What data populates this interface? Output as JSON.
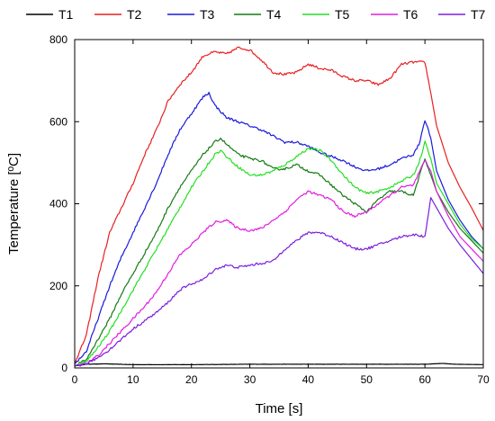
{
  "chart_data": {
    "type": "line",
    "xlabel": "Time [s]",
    "ylabel": "Temperature [ºC]",
    "xlim": [
      0,
      70
    ],
    "ylim": [
      0,
      800
    ],
    "xticks": [
      0,
      10,
      20,
      30,
      40,
      50,
      60,
      70
    ],
    "yticks": [
      0,
      200,
      400,
      600,
      800
    ],
    "xtick_labels": [
      "0",
      "10",
      "20",
      "30",
      "40",
      "50",
      "60",
      "70"
    ],
    "ytick_labels": [
      "0",
      "200",
      "400",
      "600",
      "800"
    ],
    "grid": false,
    "legend_position": "top",
    "series": [
      {
        "name": "T1",
        "color": "#000000",
        "x": [
          0,
          2,
          5,
          10,
          20,
          30,
          40,
          50,
          60,
          63,
          65,
          70
        ],
        "y": [
          5,
          9,
          10,
          8,
          8,
          9,
          9,
          9,
          9,
          11,
          9,
          8
        ]
      },
      {
        "name": "T2",
        "color": "#e8201f",
        "x": [
          0,
          2,
          4,
          6,
          8,
          10,
          12,
          14,
          16,
          18,
          20,
          22,
          24,
          26,
          28,
          30,
          32,
          34,
          36,
          38,
          40,
          42,
          44,
          46,
          48,
          50,
          52,
          54,
          56,
          58,
          60,
          61,
          62,
          64,
          66,
          68,
          70
        ],
        "y": [
          10,
          80,
          220,
          330,
          390,
          450,
          520,
          580,
          650,
          690,
          720,
          760,
          770,
          765,
          780,
          775,
          750,
          720,
          715,
          720,
          740,
          730,
          725,
          710,
          700,
          700,
          690,
          705,
          740,
          745,
          745,
          670,
          590,
          500,
          440,
          390,
          335
        ]
      },
      {
        "name": "T3",
        "color": "#1a1adc",
        "x": [
          0,
          2,
          4,
          6,
          8,
          10,
          12,
          14,
          16,
          18,
          20,
          22,
          23,
          24,
          26,
          28,
          30,
          32,
          34,
          36,
          38,
          40,
          42,
          44,
          46,
          48,
          50,
          52,
          54,
          56,
          58,
          59,
          60,
          61,
          62,
          64,
          66,
          68,
          70
        ],
        "y": [
          10,
          40,
          120,
          200,
          270,
          330,
          390,
          450,
          520,
          580,
          620,
          660,
          670,
          640,
          610,
          600,
          590,
          580,
          565,
          550,
          550,
          540,
          525,
          515,
          505,
          490,
          480,
          485,
          495,
          510,
          520,
          545,
          605,
          560,
          480,
          410,
          360,
          320,
          290
        ]
      },
      {
        "name": "T4",
        "color": "#147a14",
        "x": [
          0,
          2,
          4,
          6,
          8,
          10,
          12,
          14,
          16,
          18,
          20,
          22,
          24,
          25,
          26,
          28,
          30,
          32,
          34,
          36,
          38,
          40,
          42,
          44,
          46,
          48,
          50,
          52,
          54,
          56,
          58,
          60,
          61,
          62,
          64,
          66,
          68,
          70
        ],
        "y": [
          5,
          20,
          70,
          120,
          180,
          230,
          280,
          330,
          390,
          440,
          480,
          520,
          550,
          560,
          545,
          520,
          510,
          505,
          485,
          485,
          495,
          480,
          470,
          445,
          420,
          400,
          380,
          410,
          430,
          430,
          420,
          510,
          470,
          430,
          380,
          340,
          310,
          280
        ]
      },
      {
        "name": "T5",
        "color": "#22e022",
        "x": [
          0,
          2,
          4,
          6,
          8,
          10,
          12,
          14,
          16,
          18,
          20,
          22,
          24,
          25,
          26,
          28,
          30,
          32,
          34,
          36,
          38,
          40,
          42,
          44,
          46,
          48,
          50,
          52,
          54,
          56,
          58,
          59,
          60,
          61,
          62,
          64,
          66,
          68,
          70
        ],
        "y": [
          5,
          15,
          50,
          90,
          140,
          190,
          240,
          290,
          340,
          390,
          440,
          480,
          520,
          530,
          515,
          490,
          470,
          470,
          480,
          495,
          515,
          535,
          530,
          505,
          470,
          440,
          425,
          430,
          440,
          455,
          470,
          500,
          550,
          510,
          450,
          400,
          350,
          315,
          290
        ]
      },
      {
        "name": "T6",
        "color": "#e01ee0",
        "x": [
          0,
          2,
          4,
          6,
          8,
          10,
          12,
          14,
          16,
          18,
          20,
          22,
          24,
          26,
          28,
          30,
          32,
          34,
          36,
          38,
          40,
          42,
          44,
          46,
          48,
          50,
          52,
          54,
          56,
          58,
          60,
          61,
          62,
          64,
          66,
          68,
          70
        ],
        "y": [
          5,
          10,
          30,
          60,
          90,
          120,
          150,
          185,
          230,
          275,
          300,
          330,
          355,
          360,
          340,
          335,
          340,
          360,
          380,
          410,
          430,
          420,
          410,
          380,
          370,
          380,
          400,
          420,
          440,
          445,
          505,
          480,
          430,
          370,
          320,
          290,
          260
        ]
      },
      {
        "name": "T7",
        "color": "#7a1ee0",
        "x": [
          0,
          2,
          4,
          6,
          8,
          10,
          12,
          14,
          16,
          18,
          20,
          22,
          24,
          26,
          28,
          30,
          32,
          34,
          36,
          38,
          40,
          42,
          44,
          46,
          48,
          50,
          52,
          54,
          56,
          58,
          60,
          61,
          62,
          64,
          66,
          68,
          70
        ],
        "y": [
          5,
          10,
          25,
          45,
          70,
          95,
          115,
          135,
          160,
          190,
          205,
          215,
          240,
          250,
          245,
          250,
          255,
          260,
          290,
          310,
          330,
          330,
          320,
          305,
          290,
          290,
          300,
          310,
          320,
          325,
          320,
          415,
          390,
          340,
          300,
          265,
          230
        ]
      }
    ]
  }
}
